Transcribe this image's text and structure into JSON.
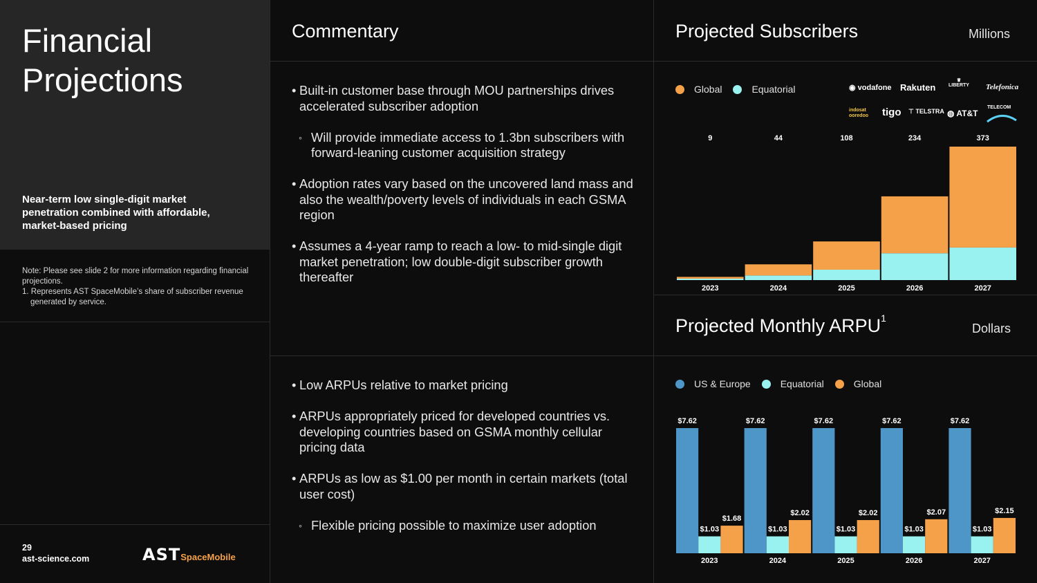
{
  "left": {
    "title_line1": "Financial",
    "title_line2": "Projections",
    "subtitle": "Near-term low single-digit market penetration combined with affordable, market-based pricing",
    "note": "Note: Please see slide 2 for more information regarding financial projections.",
    "footnote": "1. Represents AST SpaceMobile’s share of subscriber revenue generated by service.",
    "page_number": "29",
    "website": "ast-science.com",
    "logo_text": "AST",
    "logo_subtext": "SpaceMobile"
  },
  "commentary": {
    "title": "Commentary",
    "top_b1": "Built-in customer base through MOU partnerships drives accelerated subscriber adoption",
    "top_b1_sub": "Will provide immediate access to 1.3bn subscribers with forward-leaning customer acquisition strategy",
    "top_b2": "Adoption rates vary based on the uncovered land mass and also the wealth/poverty levels of individuals in each GSMA region",
    "top_b3": "Assumes a 4-year ramp to reach a low- to mid-single digit market penetration; low double-digit subscriber growth thereafter",
    "bot_b1": "Low ARPUs relative to market pricing",
    "bot_b2": "ARPUs appropriately priced for developed countries vs. developing countries based on GSMA monthly cellular pricing data",
    "bot_b3": "ARPUs as low as $1.00 per month in certain markets (total user cost)",
    "bot_b3_sub": "Flexible pricing possible to maximize user adoption"
  },
  "subscribers": {
    "title": "Projected Subscribers",
    "unit": "Millions",
    "legend": [
      "Global",
      "Equatorial"
    ],
    "partners": [
      "vodafone",
      "Rakuten",
      "LIBERTY",
      "Telefonica",
      "indosat ooredoo",
      "tigo",
      "TELSTRA",
      "AT&T",
      "TELECOM"
    ]
  },
  "arpu": {
    "title": "Projected Monthly ARPU",
    "title_sup": "1",
    "unit": "Dollars",
    "legend": [
      "US & Europe",
      "Equatorial",
      "Global"
    ]
  },
  "colors": {
    "orange": "#f5a14a",
    "cyan": "#99f2f0",
    "blue": "#4e96c8"
  },
  "chart_data": [
    {
      "type": "bar",
      "stacked": true,
      "title": "Projected Subscribers",
      "unit": "Millions",
      "categories": [
        "2023",
        "2024",
        "2025",
        "2026",
        "2027"
      ],
      "totals": [
        "9",
        "44",
        "108",
        "234",
        "373"
      ],
      "series": [
        {
          "name": "Equatorial",
          "color": "#99f2f0",
          "values": [
            4,
            13,
            29,
            75,
            91
          ]
        },
        {
          "name": "Global",
          "color": "#f5a14a",
          "values": [
            5,
            31,
            79,
            159,
            282
          ]
        }
      ],
      "ylim": [
        0,
        373
      ],
      "legend_position": "top-left"
    },
    {
      "type": "bar",
      "stacked": false,
      "title": "Projected Monthly ARPU",
      "unit": "Dollars",
      "categories": [
        "2023",
        "2024",
        "2025",
        "2026",
        "2027"
      ],
      "series": [
        {
          "name": "US & Europe",
          "color": "#4e96c8",
          "values": [
            7.62,
            7.62,
            7.62,
            7.62,
            7.62
          ],
          "labels": [
            "$7.62",
            "$7.62",
            "$7.62",
            "$7.62",
            "$7.62"
          ]
        },
        {
          "name": "Equatorial",
          "color": "#99f2f0",
          "values": [
            1.03,
            1.03,
            1.03,
            1.03,
            1.03
          ],
          "labels": [
            "$1.03",
            "$1.03",
            "$1.03",
            "$1.03",
            "$1.03"
          ]
        },
        {
          "name": "Global",
          "color": "#f5a14a",
          "values": [
            1.68,
            2.02,
            2.02,
            2.07,
            2.15
          ],
          "labels": [
            "$1.68",
            "$2.02",
            "$2.02",
            "$2.07",
            "$2.15"
          ]
        }
      ],
      "ylim": [
        0,
        7.62
      ],
      "legend_position": "top-left"
    }
  ]
}
